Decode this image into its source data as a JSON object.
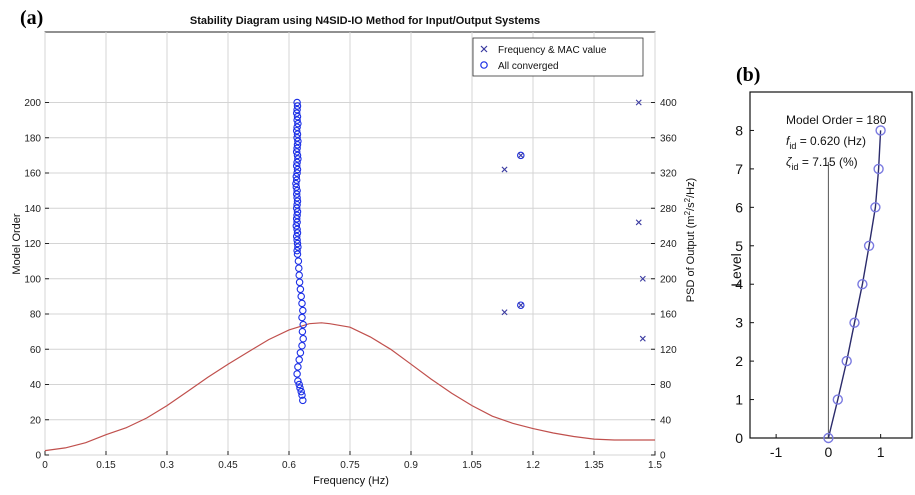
{
  "chart_data": [
    {
      "type": "scatter",
      "panel_label": "(a)",
      "title": "Stability Diagram using N4SID-IO Method for Input/Output Systems",
      "xlabel": "Frequency (Hz)",
      "ylabel": "Model Order",
      "y2label_pre": "PSD of Output (m",
      "y2label_sup1": "2",
      "y2label_mid": "/s",
      "y2label_sup2": "2",
      "y2label_post": "/Hz)",
      "xlim": [
        0,
        1.5
      ],
      "ylim": [
        0,
        240
      ],
      "y2lim": [
        0,
        480
      ],
      "xticks": [
        "0",
        "0.15",
        "0.3",
        "0.45",
        "0.6",
        "0.75",
        "0.9",
        "1.05",
        "1.2",
        "1.35",
        "1.5"
      ],
      "yticks": [
        "0",
        "20",
        "40",
        "60",
        "80",
        "100",
        "120",
        "140",
        "160",
        "180",
        "200"
      ],
      "y2ticks": [
        "0",
        "40",
        "80",
        "120",
        "160",
        "200",
        "240",
        "280",
        "320",
        "360",
        "400"
      ],
      "grid": true,
      "legend_position": "top-right",
      "legend": [
        "Frequency & MAC value",
        "All converged"
      ],
      "series": [
        {
          "name": "Frequency & MAC value",
          "marker": "x",
          "color": "#3a3aa0",
          "x": [
            1.13,
            1.17,
            1.13,
            1.17,
            1.46,
            1.46,
            1.47,
            1.47
          ],
          "y": [
            162,
            170,
            81,
            85,
            200,
            132,
            100,
            66
          ]
        },
        {
          "name": "All converged",
          "marker": "o",
          "color": "#1a2ee6",
          "x": [
            0.62,
            0.621,
            0.62,
            0.619,
            0.621,
            0.62,
            0.622,
            0.62,
            0.619,
            0.621,
            0.62,
            0.622,
            0.621,
            0.62,
            0.619,
            0.621,
            0.622,
            0.62,
            0.619,
            0.621,
            0.62,
            0.618,
            0.619,
            0.617,
            0.618,
            0.62,
            0.619,
            0.62,
            0.621,
            0.62,
            0.619,
            0.621,
            0.62,
            0.619,
            0.62,
            0.618,
            0.62,
            0.621,
            0.619,
            0.62,
            0.621,
            0.622,
            0.62,
            0.621,
            0.623,
            0.624,
            0.625,
            0.626,
            0.628,
            0.63,
            0.632,
            0.634,
            0.632,
            0.635,
            0.633,
            0.635,
            0.632,
            0.628,
            0.625,
            0.622,
            0.62,
            0.622,
            0.625,
            0.627,
            0.63,
            0.632,
            0.634,
            1.17,
            1.17
          ],
          "y": [
            200,
            198,
            196,
            194,
            192,
            190,
            188,
            186,
            184,
            182,
            180,
            178,
            176,
            174,
            172,
            170,
            168,
            166,
            164,
            162,
            160,
            158,
            156,
            154,
            152,
            150,
            148,
            146,
            144,
            142,
            140,
            138,
            136,
            134,
            132,
            130,
            128,
            126,
            124,
            122,
            120,
            118,
            116,
            114,
            110,
            106,
            102,
            98,
            94,
            90,
            86,
            82,
            78,
            74,
            70,
            66,
            62,
            58,
            54,
            50,
            46,
            42,
            40,
            38,
            36,
            34,
            31,
            170,
            85
          ]
        },
        {
          "name": "PSD",
          "marker": "line",
          "axis": "right",
          "color": "#c0504d",
          "x": [
            0,
            0.05,
            0.1,
            0.15,
            0.2,
            0.25,
            0.3,
            0.35,
            0.4,
            0.45,
            0.5,
            0.55,
            0.6,
            0.65,
            0.68,
            0.7,
            0.75,
            0.8,
            0.85,
            0.9,
            0.95,
            1.0,
            1.05,
            1.1,
            1.15,
            1.2,
            1.25,
            1.3,
            1.35,
            1.4,
            1.45,
            1.5
          ],
          "y": [
            5,
            8,
            14,
            23,
            31,
            42,
            56,
            72,
            88,
            103,
            117,
            131,
            142,
            149,
            150,
            149,
            145,
            134,
            120,
            103,
            86,
            70,
            56,
            44,
            36,
            30,
            25,
            21,
            18,
            17,
            17,
            17
          ]
        }
      ]
    },
    {
      "type": "line",
      "panel_label": "(b)",
      "ylabel": "Level",
      "xlim": [
        -1.5,
        1.6
      ],
      "ylim": [
        0,
        9
      ],
      "xticks": [
        "-1",
        "0",
        "1"
      ],
      "yticks": [
        "0",
        "1",
        "2",
        "3",
        "4",
        "5",
        "6",
        "7",
        "8"
      ],
      "annotation": {
        "line1": "Model Order = 180",
        "line2_var": "f",
        "line2_sub": "id",
        "line2_val": " = 0.620 (Hz)",
        "line3_var": "ζ",
        "line3_sub": "id",
        "line3_val": " = 7.15 (%)"
      },
      "series": [
        {
          "name": "mode shape",
          "color": "#2b2b6b",
          "marker_color": "#7a7ae0",
          "x": [
            0,
            0.18,
            0.35,
            0.5,
            0.65,
            0.78,
            0.9,
            0.96,
            1.0
          ],
          "y": [
            0,
            1,
            2,
            3,
            4,
            5,
            6,
            7,
            8
          ]
        }
      ]
    }
  ]
}
